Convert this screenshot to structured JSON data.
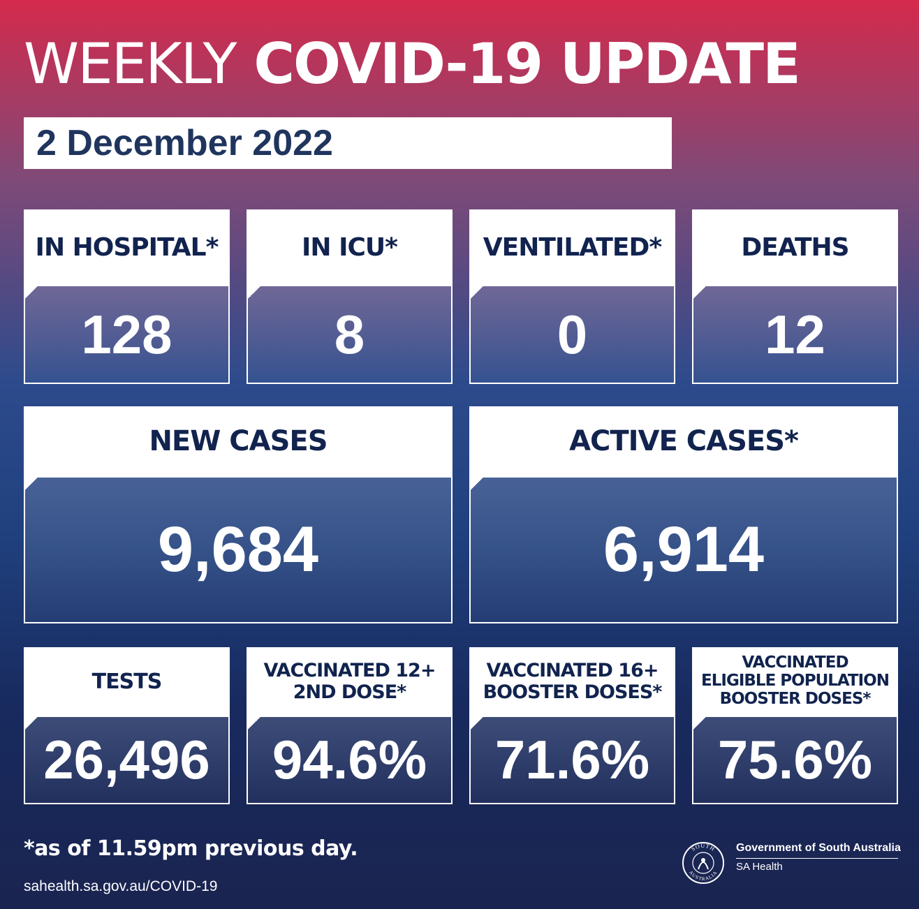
{
  "header": {
    "title_light": "WEEKLY",
    "title_bold": "COVID-19 UPDATE",
    "date": "2 December 2022"
  },
  "row1": [
    {
      "label": "IN HOSPITAL*",
      "value": "128"
    },
    {
      "label": "IN ICU*",
      "value": "8"
    },
    {
      "label": "VENTILATED*",
      "value": "0"
    },
    {
      "label": "DEATHS",
      "value": "12"
    }
  ],
  "row2": [
    {
      "label": "NEW CASES",
      "value": "9,684"
    },
    {
      "label": "ACTIVE CASES*",
      "value": "6,914"
    }
  ],
  "row3": [
    {
      "label_lines": [
        "TESTS"
      ],
      "value": "26,496"
    },
    {
      "label_lines": [
        "VACCINATED 12+",
        "2ND DOSE*"
      ],
      "value": "94.6%"
    },
    {
      "label_lines": [
        "VACCINATED 16+",
        "BOOSTER DOSES*"
      ],
      "value": "71.6%"
    },
    {
      "label_lines": [
        "VACCINATED",
        "ELIGIBLE POPULATION",
        "BOOSTER DOSES*"
      ],
      "value": "75.6%"
    }
  ],
  "footer": {
    "footnote": "*as of 11.59pm previous day.",
    "url": "sahealth.sa.gov.au/COVID-19",
    "gov_line1": "Government of South Australia",
    "gov_line2": "SA Health",
    "seal_top": "SOUTH",
    "seal_bottom": "AUSTRALIA",
    "seal_icon": "state-badge-icon"
  },
  "colors": {
    "header_text": "#11234e",
    "date_text": "#1f355e",
    "gradient_top": "#d42a4c",
    "gradient_bottom": "#1a2450"
  }
}
